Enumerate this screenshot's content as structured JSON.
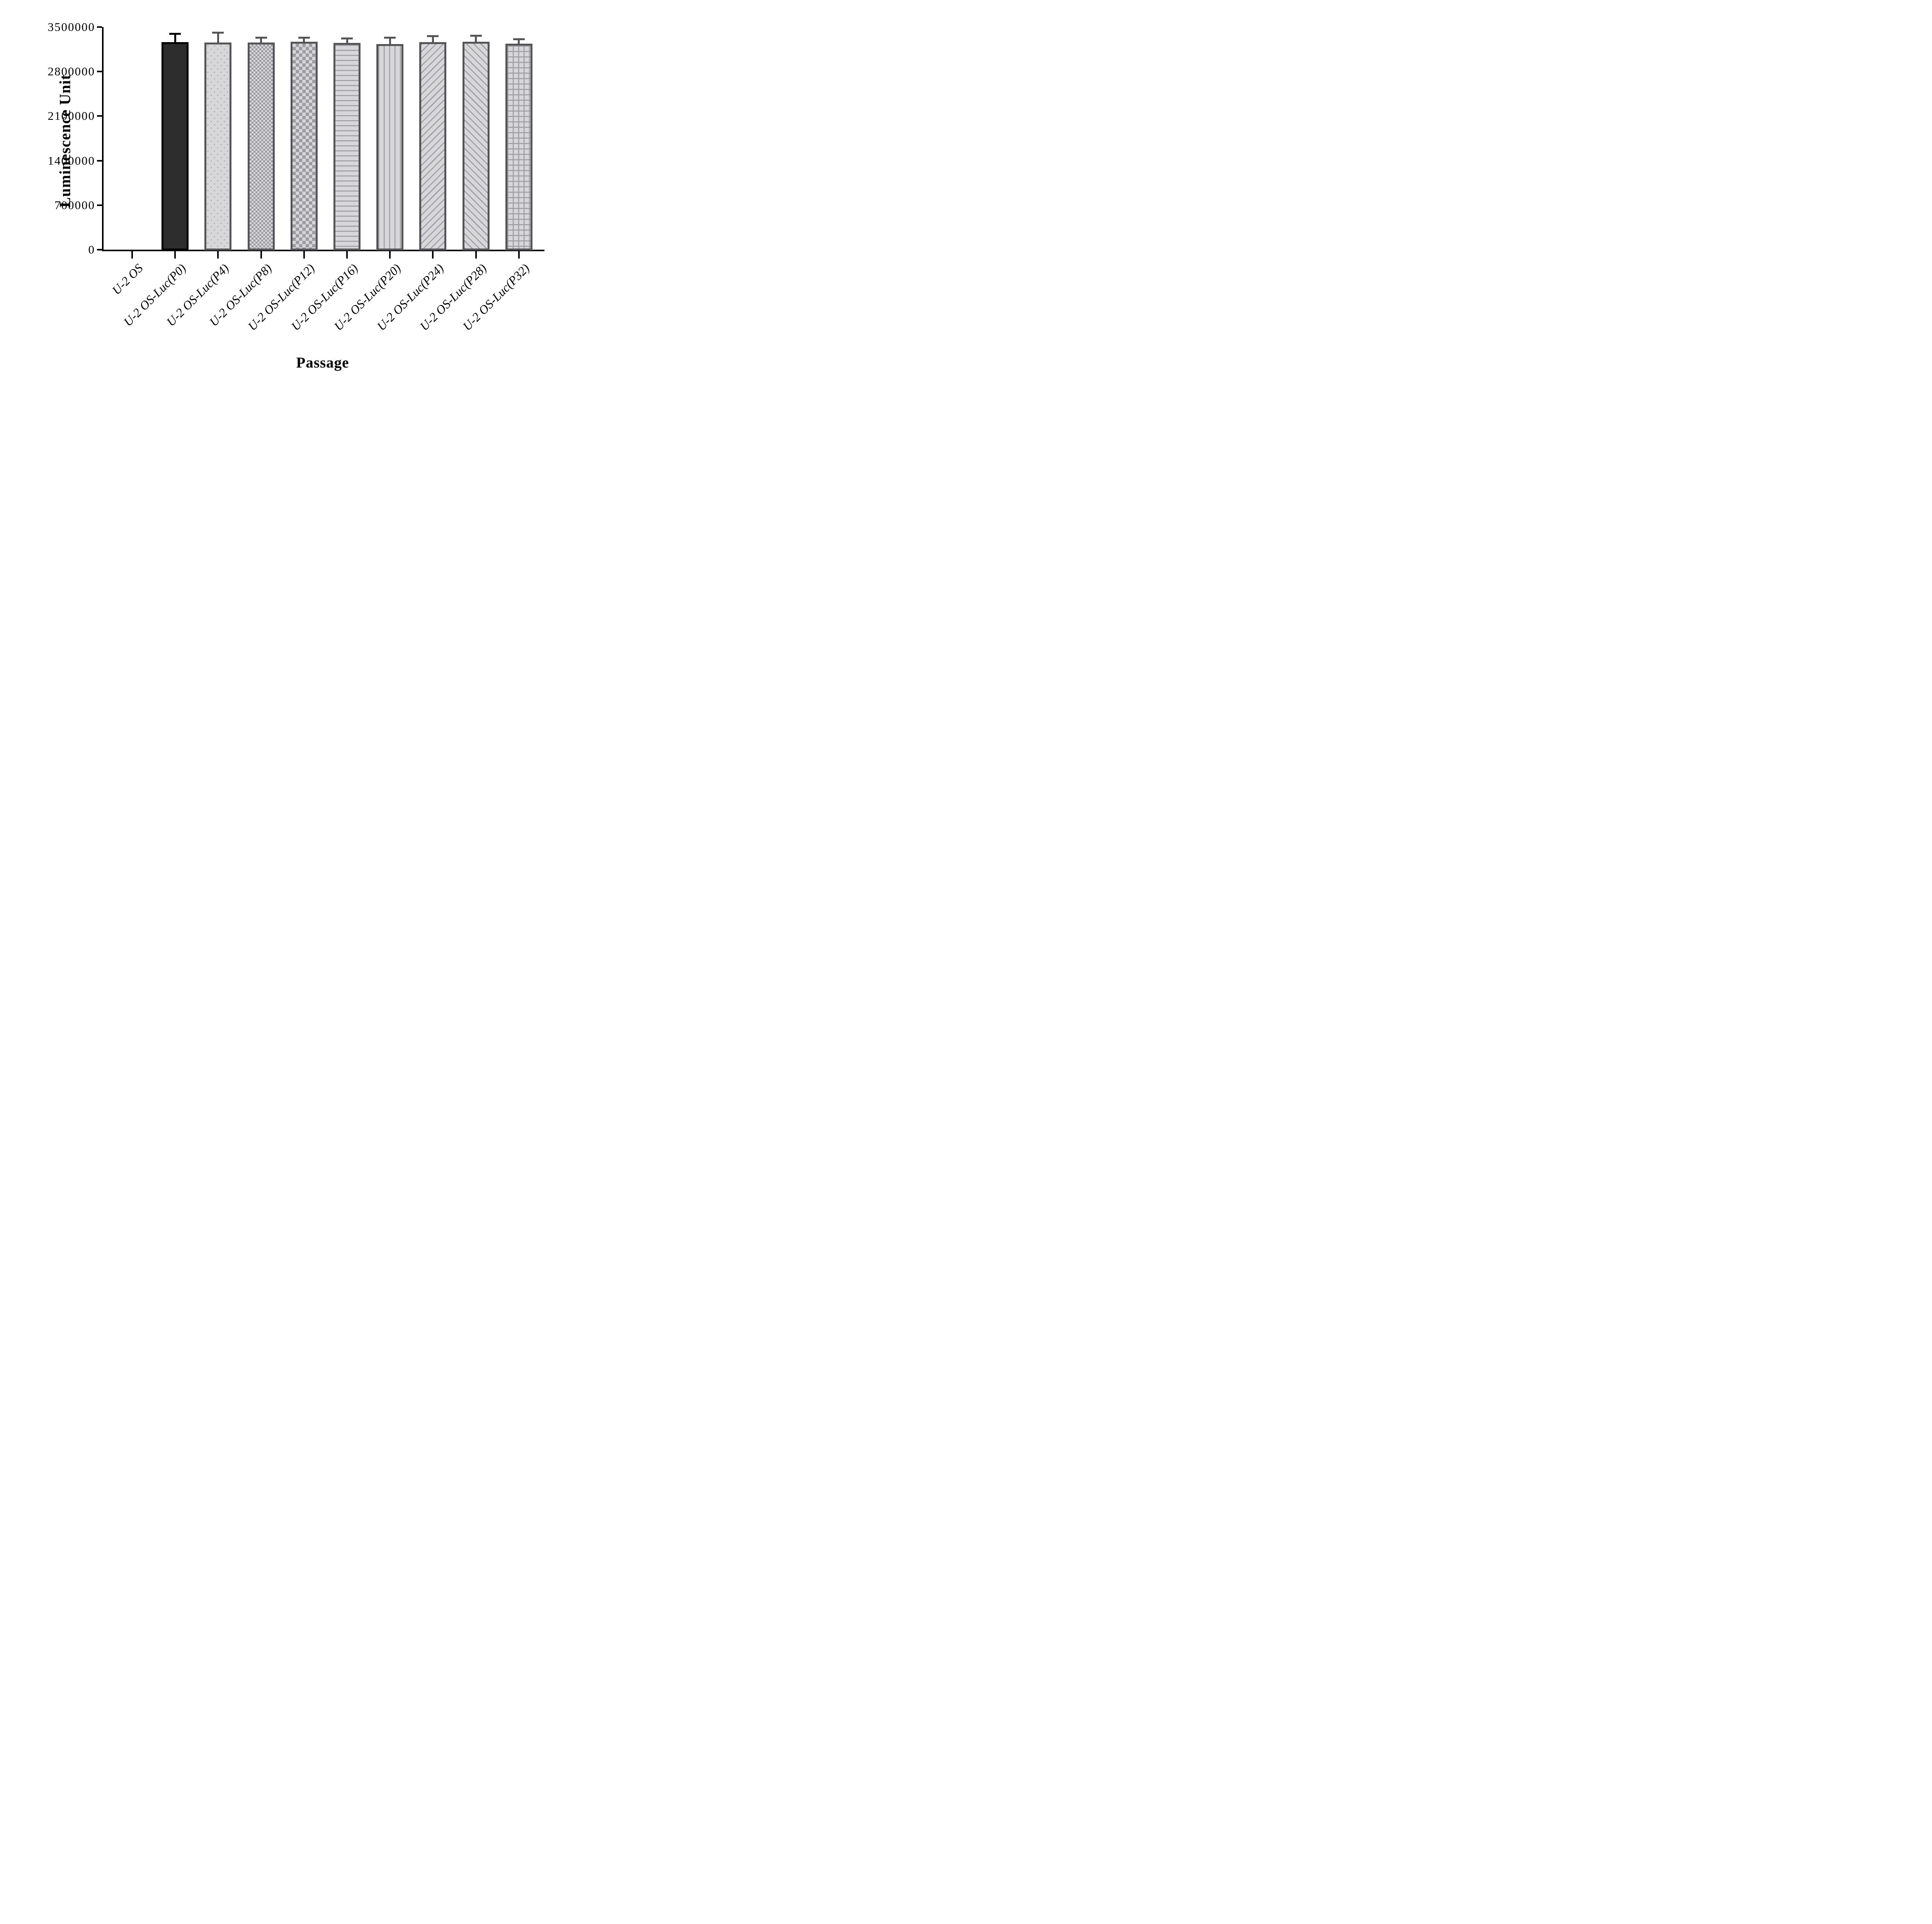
{
  "chart_data": {
    "type": "bar",
    "title": "",
    "xlabel": "Passage",
    "ylabel": "Luminescence Unit",
    "ylim": [
      0,
      3500000
    ],
    "yticks": [
      0,
      700000,
      1400000,
      2100000,
      2800000,
      3500000
    ],
    "grid": false,
    "legend_position": "none",
    "categories": [
      "U-2 OS",
      "U-2 OS-Luc(P0)",
      "U-2 OS-Luc(P4)",
      "U-2 OS-Luc(P8)",
      "U-2 OS-Luc(P12)",
      "U-2 OS-Luc(P16)",
      "U-2 OS-Luc(P20)",
      "U-2 OS-Luc(P24)",
      "U-2 OS-Luc(P28)",
      "U-2 OS-Luc(P32)"
    ],
    "values": [
      0,
      3260000,
      3255000,
      3255000,
      3270000,
      3250000,
      3230000,
      3265000,
      3272000,
      3240000
    ],
    "errors": [
      0,
      120000,
      140000,
      62000,
      48000,
      58000,
      86000,
      78000,
      74000,
      55000
    ],
    "patterns": [
      "none",
      "solid",
      "dots",
      "checker-small",
      "checker-large",
      "horizontal-lines",
      "vertical-lines",
      "diagonal-up",
      "diagonal-down",
      "grid"
    ],
    "colors": {
      "background": "#ffffff",
      "axis": "#000000",
      "text": "#000000",
      "solid_bar_fill": "#2d2d2d",
      "solid_bar_border": "#000000",
      "solid_bar_error": "#000000",
      "pattern_bar_fill": "#d7d7d9",
      "pattern_bar_line": "#9b9ba1",
      "pattern_bar_border": "#555558",
      "pattern_bar_error": "#555558"
    }
  }
}
